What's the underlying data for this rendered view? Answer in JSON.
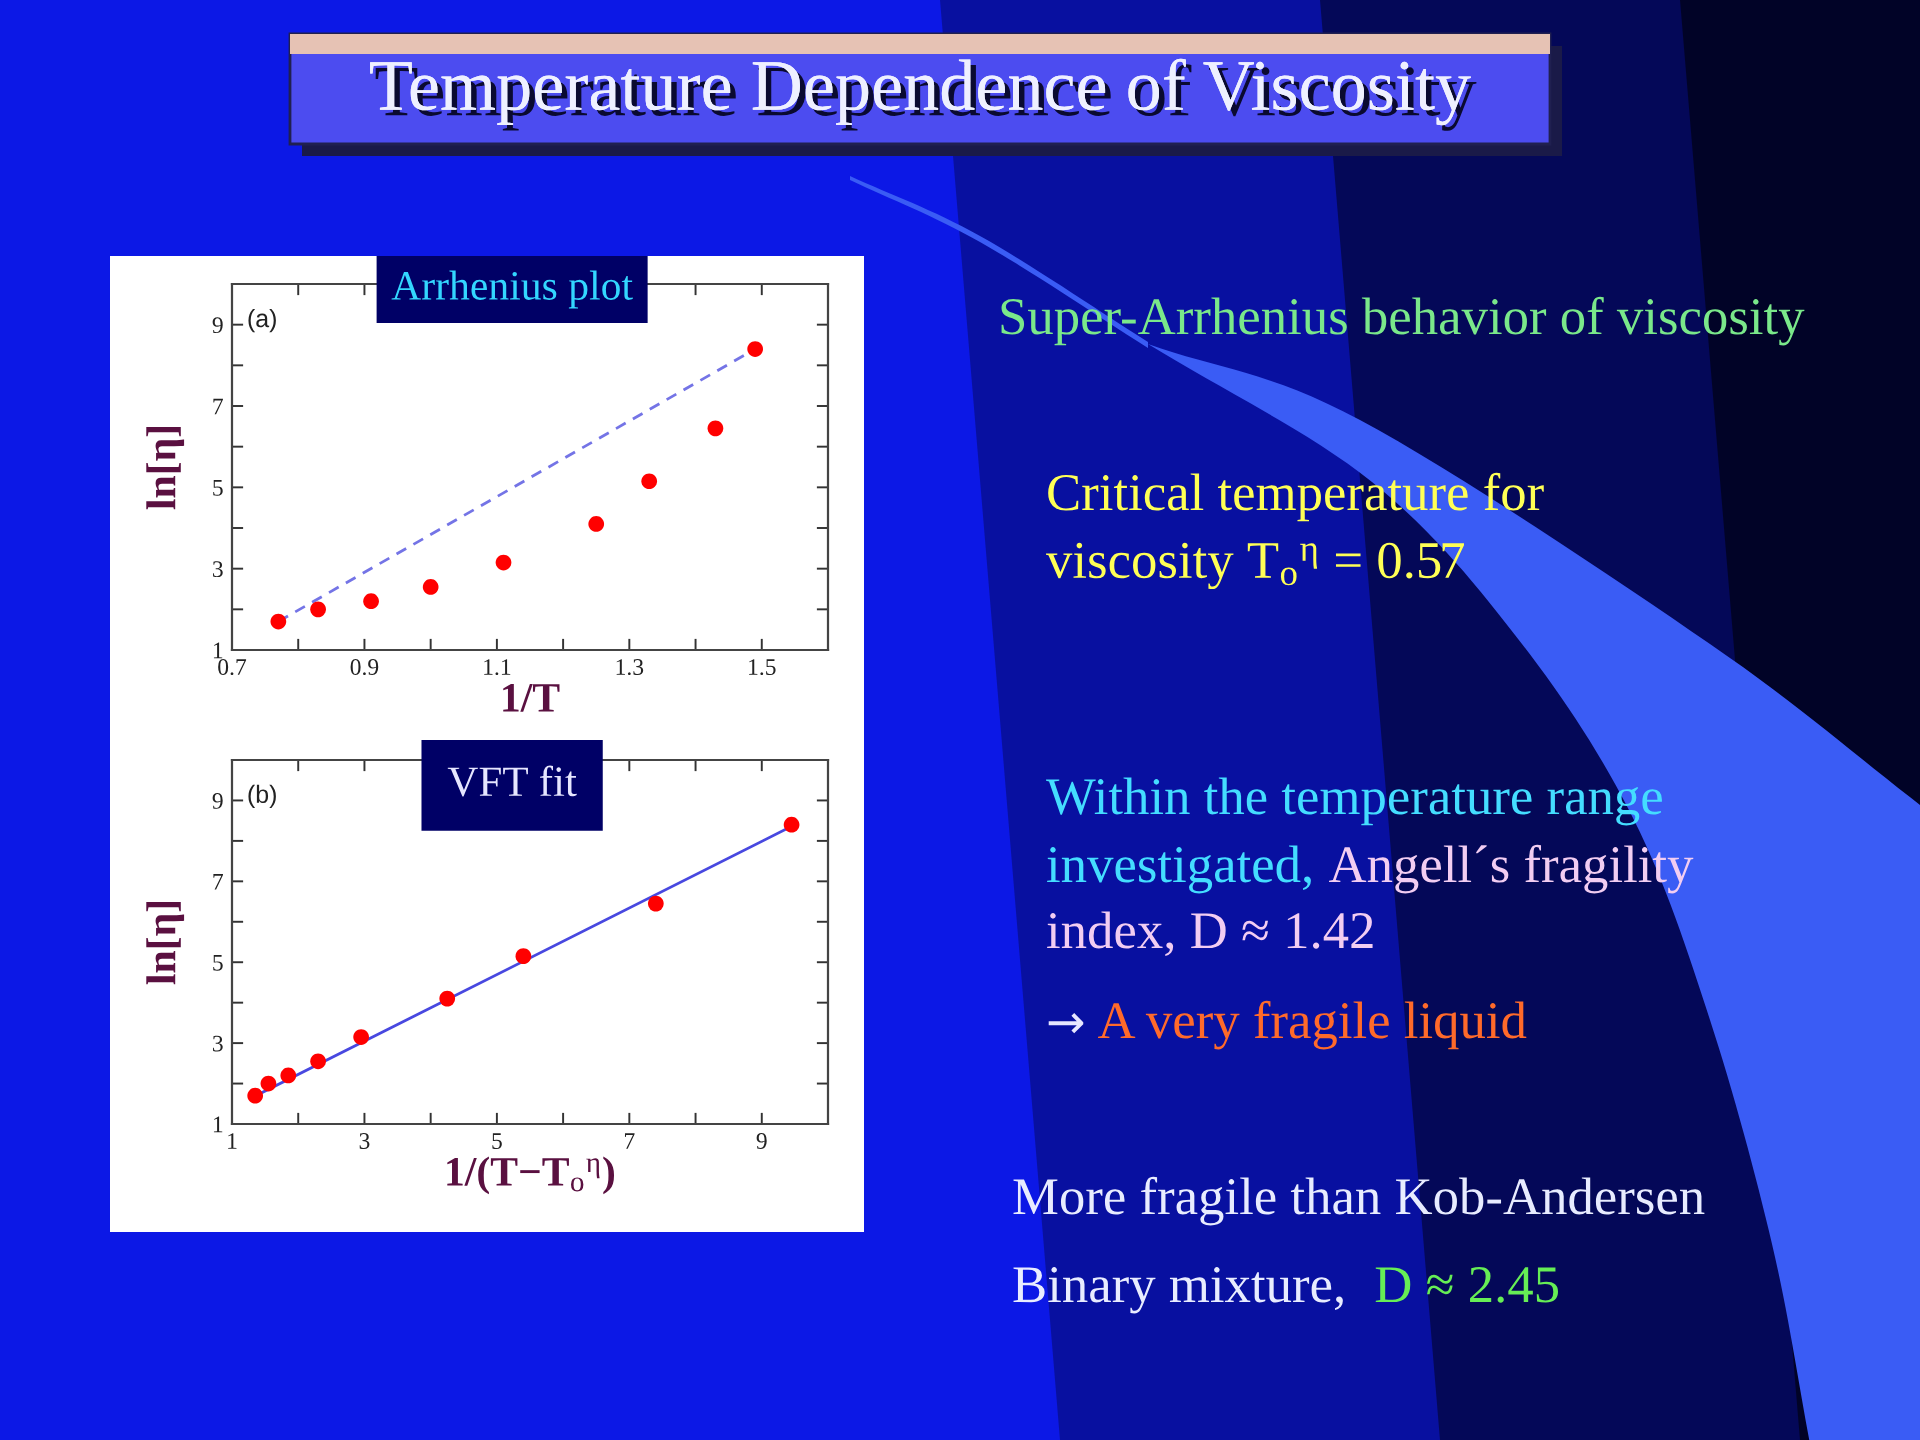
{
  "chart_data": [
    {
      "type": "other",
      "title": "Temperature Dependence of Viscosity",
      "annotations": [
        "Super-Arrhenius behavior of viscosity",
        "Critical temperature for",
        "viscosity T$_{o}$$^{η}$ = 0.57",
        "Within the temperature range",
        "investigated,",
        "Angell´s fragility",
        "index, D ≈ 1.42",
        "→",
        "A very fragile liquid",
        "More fragile than Kob-Andersen",
        "Binary mixture,",
        "D ≈ 2.45"
      ]
    },
    {
      "type": "scatter",
      "title": "Arrhenius plot",
      "xlabel": "1/T",
      "ylabel": "ln[η]",
      "annotations": [
        "(a)"
      ],
      "x": [
        0.77,
        0.83,
        0.91,
        1.0,
        1.11,
        1.25,
        1.33,
        1.43,
        1.49
      ],
      "xlim": [
        0.7,
        1.6
      ],
      "ylim": [
        1,
        10
      ],
      "xticks": [
        0.7,
        {
          "value": 0.8,
          "label": null
        },
        0.9,
        {
          "value": 1.0,
          "label": null
        },
        1.1,
        {
          "value": 1.2,
          "label": null
        },
        1.3,
        {
          "value": 1.4,
          "label": null
        },
        1.5
      ],
      "yticks": [
        1,
        {
          "value": 2,
          "label": null
        },
        3,
        {
          "value": 4,
          "label": null
        },
        5,
        {
          "value": 6,
          "label": null
        },
        7,
        {
          "value": 8,
          "label": null
        },
        9
      ],
      "series": [
        {
          "type": "scatter",
          "color": "#ff0000",
          "marker": "circle",
          "values": [
            1.7,
            2.0,
            2.2,
            2.55,
            3.15,
            4.1,
            5.15,
            6.45,
            8.4
          ]
        },
        {
          "type": "line",
          "x": [
            0.77,
            1.49
          ],
          "values": [
            1.7,
            8.4
          ],
          "color": "#7474e6",
          "line_style": "dashed"
        }
      ]
    },
    {
      "type": "scatter",
      "title": "VFT fit",
      "xlabel": "1/(T−T$_{o}$$^{η}$)",
      "ylabel": "ln[η]",
      "annotations": [
        "(b)"
      ],
      "x": [
        1.35,
        1.55,
        1.85,
        2.3,
        2.95,
        4.25,
        5.4,
        7.4,
        9.45
      ],
      "xlim": [
        1,
        10
      ],
      "ylim": [
        1,
        10
      ],
      "xticks": [
        1,
        {
          "value": 2,
          "label": null
        },
        3,
        {
          "value": 4,
          "label": null
        },
        5,
        {
          "value": 6,
          "label": null
        },
        7,
        {
          "value": 8,
          "label": null
        },
        9
      ],
      "yticks": [
        1,
        {
          "value": 2,
          "label": null
        },
        3,
        {
          "value": 4,
          "label": null
        },
        5,
        {
          "value": 6,
          "label": null
        },
        7,
        {
          "value": 8,
          "label": null
        },
        9
      ],
      "series": [
        {
          "type": "scatter",
          "color": "#ff0000",
          "marker": "circle",
          "values": [
            1.7,
            2.0,
            2.2,
            2.55,
            3.15,
            4.1,
            5.15,
            6.45,
            8.4
          ]
        },
        {
          "type": "line",
          "x": [
            1.3,
            9.5
          ],
          "values": [
            1.65,
            8.4
          ],
          "color": "#4848e0",
          "line_style": "solid"
        }
      ]
    }
  ]
}
